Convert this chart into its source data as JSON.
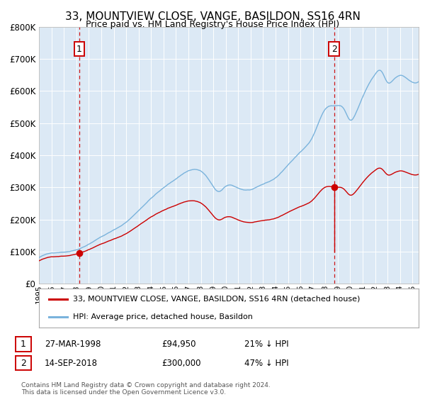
{
  "title": "33, MOUNTVIEW CLOSE, VANGE, BASILDON, SS16 4RN",
  "subtitle": "Price paid vs. HM Land Registry's House Price Index (HPI)",
  "sale1_date": 1998.23,
  "sale1_price": 94950,
  "sale1_label": "27-MAR-1998",
  "sale1_price_label": "£94,950",
  "sale1_pct": "21% ↓ HPI",
  "sale2_date": 2018.71,
  "sale2_price": 300000,
  "sale2_label": "14-SEP-2018",
  "sale2_price_label": "£300,000",
  "sale2_pct": "47% ↓ HPI",
  "hpi_color": "#7ab3dc",
  "property_color": "#cc0000",
  "dot_color": "#cc0000",
  "vline_color": "#cc0000",
  "background_color": "#dce9f5",
  "plot_bg": "#dce9f5",
  "legend_label_property": "33, MOUNTVIEW CLOSE, VANGE, BASILDON, SS16 4RN (detached house)",
  "legend_label_hpi": "HPI: Average price, detached house, Basildon",
  "footer": "Contains HM Land Registry data © Crown copyright and database right 2024.\nThis data is licensed under the Open Government Licence v3.0.",
  "ylim": [
    0,
    800000
  ],
  "yticks": [
    0,
    100000,
    200000,
    300000,
    400000,
    500000,
    600000,
    700000,
    800000
  ],
  "xmin": 1995.0,
  "xmax": 2025.5
}
